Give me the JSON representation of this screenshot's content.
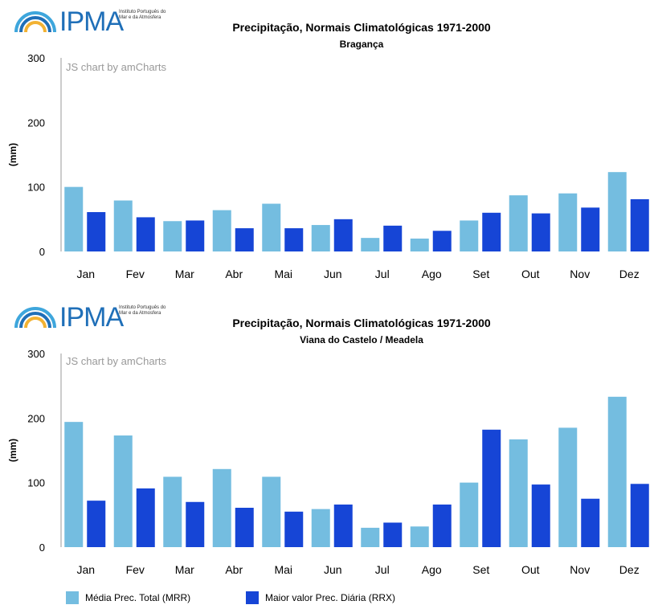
{
  "colors": {
    "mrr": "#74BDE0",
    "rrx": "#1645D6",
    "axis": "#333333",
    "tick": "#999999"
  },
  "logo": {
    "text": "IPMA",
    "subtitle": "Instituto Português do Mar e da Atmosfera"
  },
  "credit": "JS chart by amCharts",
  "legend": {
    "mrr_label": "Média Prec. Total (MRR)",
    "rrx_label": "Maior valor Prec. Diária (RRX)"
  },
  "chart_data": [
    {
      "type": "bar",
      "title": "Precipitação, Normais Climatológicas 1971-2000",
      "subtitle": "Bragança",
      "ylabel": "(mm)",
      "xlabel": "",
      "ylim": [
        0,
        300
      ],
      "yticks": [
        0,
        100,
        200,
        300
      ],
      "categories": [
        "Jan",
        "Fev",
        "Mar",
        "Abr",
        "Mai",
        "Jun",
        "Jul",
        "Ago",
        "Set",
        "Out",
        "Nov",
        "Dez"
      ],
      "series": [
        {
          "name": "Média Prec. Total (MRR)",
          "values": [
            100,
            79,
            47,
            64,
            74,
            41,
            21,
            20,
            48,
            87,
            90,
            123
          ]
        },
        {
          "name": "Maior valor Prec. Diária (RRX)",
          "values": [
            61,
            53,
            48,
            36,
            36,
            50,
            40,
            32,
            60,
            59,
            68,
            81
          ]
        }
      ]
    },
    {
      "type": "bar",
      "title": "Precipitação, Normais Climatológicas 1971-2000",
      "subtitle": "Viana do Castelo / Meadela",
      "ylabel": "(mm)",
      "xlabel": "",
      "ylim": [
        0,
        300
      ],
      "yticks": [
        0,
        100,
        200,
        300
      ],
      "categories": [
        "Jan",
        "Fev",
        "Mar",
        "Abr",
        "Mai",
        "Jun",
        "Jul",
        "Ago",
        "Set",
        "Out",
        "Nov",
        "Dez"
      ],
      "series": [
        {
          "name": "Média Prec. Total (MRR)",
          "values": [
            194,
            173,
            109,
            121,
            109,
            59,
            30,
            32,
            100,
            167,
            185,
            233
          ]
        },
        {
          "name": "Maior valor Prec. Diária (RRX)",
          "values": [
            72,
            91,
            70,
            61,
            55,
            66,
            38,
            66,
            182,
            97,
            75,
            98
          ]
        }
      ]
    }
  ]
}
